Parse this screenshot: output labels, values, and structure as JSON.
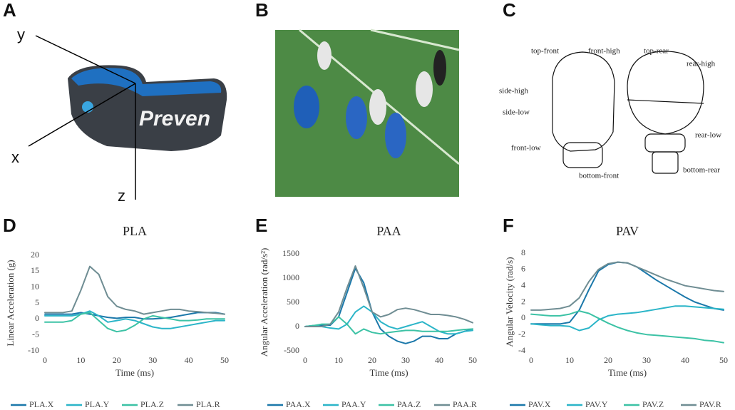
{
  "figure": {
    "panel_labels": [
      "A",
      "B",
      "C",
      "D",
      "E",
      "F"
    ],
    "axis_letters": [
      "y",
      "x",
      "z"
    ],
    "brand": "Preven",
    "head_labels": [
      "top-front",
      "front-high",
      "side-high",
      "side-low",
      "front-low",
      "bottom-front",
      "top-rear",
      "rear-high",
      "rear-low",
      "bottom-rear"
    ]
  },
  "chart_data": [
    {
      "type": "line",
      "title": "PLA",
      "x_label": "Time (ms)",
      "y_label": "Linear Acceleration (g)",
      "x": [
        0,
        2.5,
        5,
        7.5,
        10,
        12.5,
        15,
        17.5,
        20,
        22.5,
        25,
        27.5,
        30,
        32.5,
        35,
        37.5,
        40,
        42.5,
        45,
        47.5,
        50
      ],
      "xlim": [
        0,
        50
      ],
      "xticks": [
        0,
        10,
        20,
        30,
        40,
        50
      ],
      "ylim": [
        -10,
        20
      ],
      "yticks": [
        -10,
        -5,
        0,
        5,
        10,
        15,
        20
      ],
      "series": [
        {
          "name": "PLA.X",
          "color": "#1b78aa",
          "values": [
            1.5,
            1.5,
            1.5,
            1.5,
            2,
            1.5,
            1,
            0.5,
            0.2,
            0.5,
            0.5,
            0,
            0,
            0.2,
            0.5,
            1,
            1.5,
            2,
            2,
            2,
            1.5
          ]
        },
        {
          "name": "PLA.Y",
          "color": "#2bb5c8",
          "values": [
            1,
            1,
            1,
            1,
            1.5,
            2.5,
            1,
            -1,
            -0.5,
            0,
            -0.5,
            -1.5,
            -2.5,
            -3,
            -3,
            -2.5,
            -2,
            -1.5,
            -1,
            -0.5,
            -0.5
          ]
        },
        {
          "name": "PLA.Z",
          "color": "#3cc2a5",
          "values": [
            -1,
            -1,
            -1,
            -0.5,
            1.5,
            2,
            -0.5,
            -3,
            -4,
            -3.5,
            -2,
            0,
            1,
            0.5,
            0,
            -0.5,
            -0.5,
            -0.3,
            0,
            0,
            0
          ]
        },
        {
          "name": "PLA.R",
          "color": "#6f8d93",
          "values": [
            2,
            2,
            2,
            2.5,
            9,
            16.5,
            14,
            7,
            4,
            3,
            2.5,
            1.5,
            2,
            2.5,
            3,
            3,
            2.5,
            2.3,
            2,
            1.8,
            1.5
          ]
        }
      ]
    },
    {
      "type": "line",
      "title": "PAA",
      "x_label": "Time (ms)",
      "y_label": "Angular Acceleration (rad/s²)",
      "x": [
        0,
        2.5,
        5,
        7.5,
        10,
        12.5,
        15,
        17.5,
        20,
        22.5,
        25,
        27.5,
        30,
        32.5,
        35,
        37.5,
        40,
        42.5,
        45,
        47.5,
        50
      ],
      "xlim": [
        0,
        50
      ],
      "xticks": [
        0,
        10,
        20,
        30,
        40,
        50
      ],
      "ylim": [
        -500,
        1500
      ],
      "yticks": [
        -500,
        0,
        500,
        1000,
        1500
      ],
      "series": [
        {
          "name": "PAA.X",
          "color": "#1b78aa",
          "values": [
            0,
            20,
            30,
            30,
            200,
            700,
            1200,
            900,
            300,
            -50,
            -200,
            -300,
            -350,
            -300,
            -200,
            -200,
            -250,
            -250,
            -150,
            -100,
            -50
          ]
        },
        {
          "name": "PAA.Y",
          "color": "#2bb5c8",
          "values": [
            0,
            20,
            0,
            -30,
            -50,
            50,
            300,
            420,
            300,
            100,
            0,
            -50,
            0,
            50,
            100,
            0,
            -100,
            -150,
            -150,
            -100,
            -80
          ]
        },
        {
          "name": "PAA.Z",
          "color": "#3cc2a5",
          "values": [
            0,
            20,
            50,
            50,
            200,
            50,
            -150,
            -50,
            -120,
            -150,
            -120,
            -100,
            -80,
            -80,
            -100,
            -100,
            -100,
            -100,
            -80,
            -60,
            -50
          ]
        },
        {
          "name": "PAA.R",
          "color": "#6f8d93",
          "values": [
            0,
            0,
            0,
            50,
            300,
            800,
            1250,
            800,
            300,
            200,
            250,
            350,
            380,
            350,
            300,
            250,
            250,
            230,
            200,
            150,
            80
          ]
        }
      ]
    },
    {
      "type": "line",
      "title": "PAV",
      "x_label": "Time (ms)",
      "y_label": "Angular Velocity (rad/s)",
      "x": [
        0,
        2.5,
        5,
        7.5,
        10,
        12.5,
        15,
        17.5,
        20,
        22.5,
        25,
        27.5,
        30,
        32.5,
        35,
        37.5,
        40,
        42.5,
        45,
        47.5,
        50
      ],
      "xlim": [
        0,
        50
      ],
      "xticks": [
        0,
        10,
        20,
        30,
        40,
        50
      ],
      "ylim": [
        -4,
        8
      ],
      "yticks": [
        -4,
        -2,
        0,
        2,
        4,
        6,
        8
      ],
      "series": [
        {
          "name": "PAV.X",
          "color": "#1b78aa",
          "values": [
            -0.7,
            -0.7,
            -0.7,
            -0.7,
            -0.5,
            1,
            3.5,
            5.8,
            6.6,
            6.9,
            6.8,
            6.3,
            5.5,
            4.7,
            4,
            3.3,
            2.6,
            2,
            1.6,
            1.2,
            1
          ]
        },
        {
          "name": "PAV.Y",
          "color": "#2bb5c8",
          "values": [
            -0.7,
            -0.8,
            -0.9,
            -0.9,
            -1,
            -1.5,
            -1.2,
            -0.2,
            0.3,
            0.5,
            0.6,
            0.7,
            0.9,
            1.1,
            1.3,
            1.5,
            1.5,
            1.4,
            1.3,
            1.2,
            1.1
          ]
        },
        {
          "name": "PAV.Z",
          "color": "#3cc2a5",
          "values": [
            0.5,
            0.4,
            0.3,
            0.3,
            0.5,
            0.9,
            0.6,
            0,
            -0.6,
            -1.1,
            -1.5,
            -1.8,
            -2,
            -2.1,
            -2.2,
            -2.3,
            -2.4,
            -2.5,
            -2.7,
            -2.8,
            -3
          ]
        },
        {
          "name": "PAV.R",
          "color": "#6f8d93",
          "values": [
            1,
            1,
            1.1,
            1.2,
            1.5,
            2.5,
            4.5,
            6,
            6.7,
            6.9,
            6.8,
            6.3,
            5.8,
            5.3,
            4.8,
            4.4,
            4,
            3.8,
            3.6,
            3.4,
            3.3
          ]
        }
      ]
    }
  ]
}
